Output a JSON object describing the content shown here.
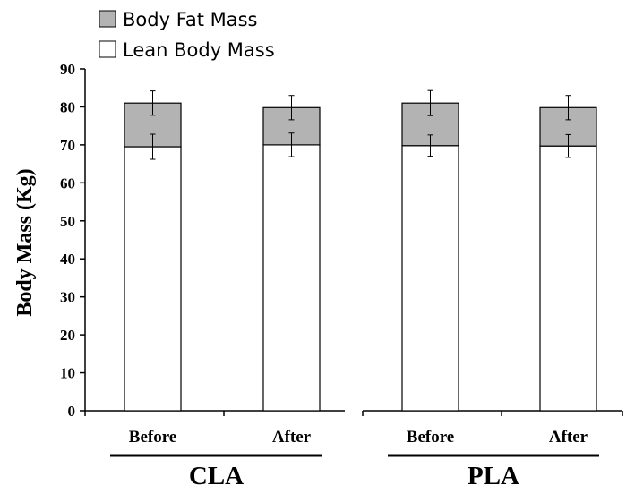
{
  "chart_data": {
    "type": "bar",
    "stacked": true,
    "title": "",
    "xlabel": "",
    "ylabel": "Body Mass (Kg)",
    "ylim": [
      0,
      90
    ],
    "yticks": [
      0,
      10,
      20,
      30,
      40,
      50,
      60,
      70,
      80,
      90
    ],
    "categories": [
      "Before",
      "After",
      "Before",
      "After"
    ],
    "groups": [
      {
        "label": "CLA",
        "categories": [
          0,
          1
        ]
      },
      {
        "label": "PLA",
        "categories": [
          2,
          3
        ]
      }
    ],
    "legend_position": "top-left",
    "grid": false,
    "series": [
      {
        "name": "Lean Body Mass",
        "color": "#ffffff",
        "values": [
          69.5,
          70.0,
          69.8,
          69.7
        ],
        "error": [
          3.3,
          3.1,
          2.8,
          3.0
        ]
      },
      {
        "name": "Body Fat Mass",
        "color": "#b3b3b3",
        "values": [
          11.5,
          9.8,
          11.2,
          10.1
        ],
        "error": [
          3.2,
          3.2,
          3.3,
          3.2
        ]
      }
    ]
  }
}
